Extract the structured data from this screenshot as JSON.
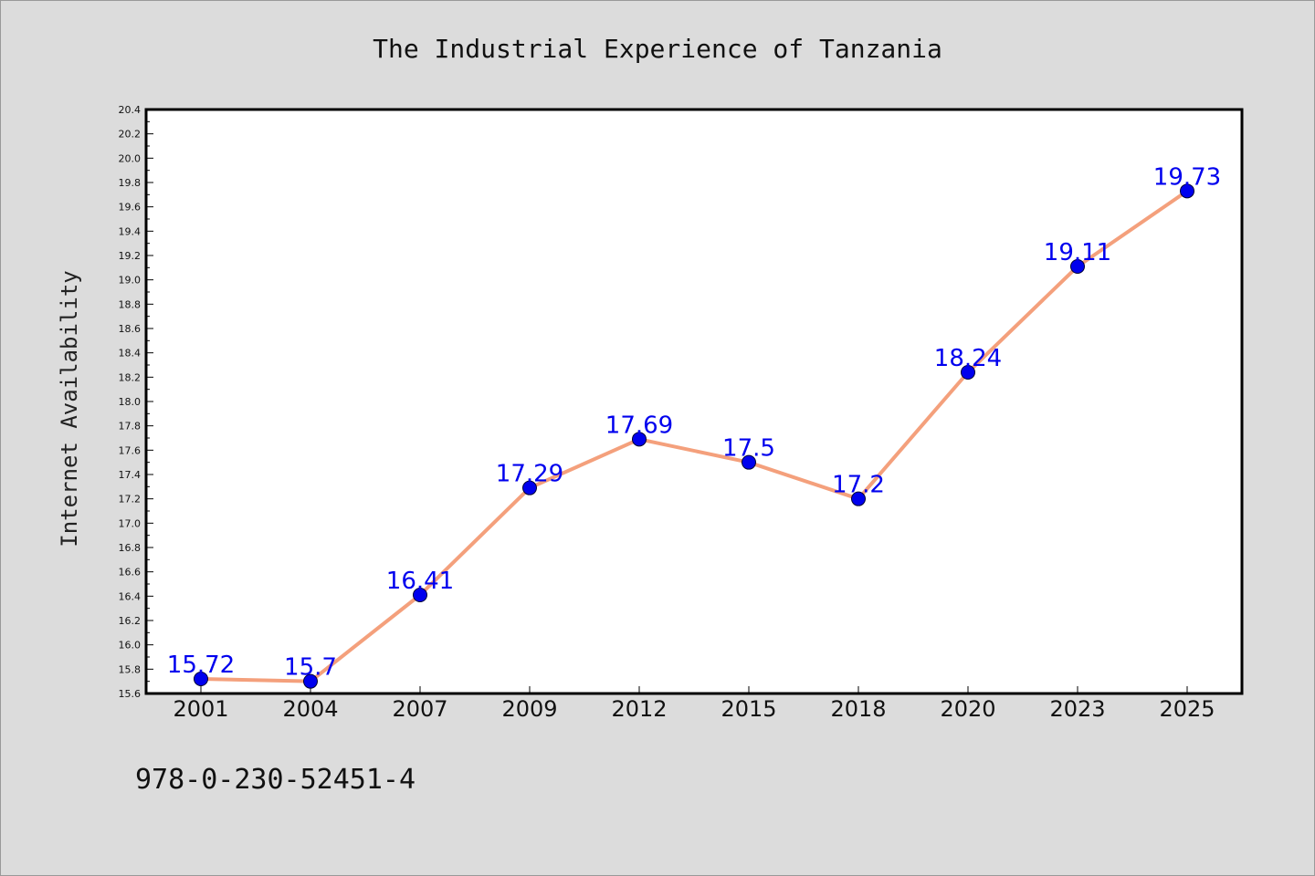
{
  "chart_data": {
    "type": "line",
    "title": "The Industrial Experience of Tanzania",
    "xlabel": "",
    "ylabel": "Internet Availability",
    "categories": [
      "2001",
      "2004",
      "2007",
      "2009",
      "2012",
      "2015",
      "2018",
      "2020",
      "2023",
      "2025"
    ],
    "series": [
      {
        "values": [
          15.72,
          15.7,
          16.41,
          17.29,
          17.69,
          17.5,
          17.2,
          18.24,
          19.11,
          19.73
        ],
        "labels": [
          "15.72",
          "15.7",
          "16.41",
          "17.29",
          "17.69",
          "17.5",
          "17.2",
          "18.24",
          "19.11",
          "19.73"
        ]
      }
    ],
    "ylim": [
      15.6,
      20.4
    ],
    "yticks": [
      "15.6",
      "15.8",
      "16.0",
      "16.2",
      "16.4",
      "16.6",
      "16.8",
      "17.0",
      "17.2",
      "17.4",
      "17.6",
      "17.8",
      "18.0",
      "18.2",
      "18.4",
      "18.6",
      "18.8",
      "19.0",
      "19.2",
      "19.4",
      "19.6",
      "19.8",
      "20.0",
      "20.2",
      "20.4"
    ],
    "grid": false,
    "line_color": "#f4a07c",
    "marker_color": "#0000ee",
    "label_color": "#0000ee",
    "background_color": "#dcdcdc",
    "plot_background_color": "#ffffff"
  },
  "footer": {
    "text": "978-0-230-52451-4"
  }
}
